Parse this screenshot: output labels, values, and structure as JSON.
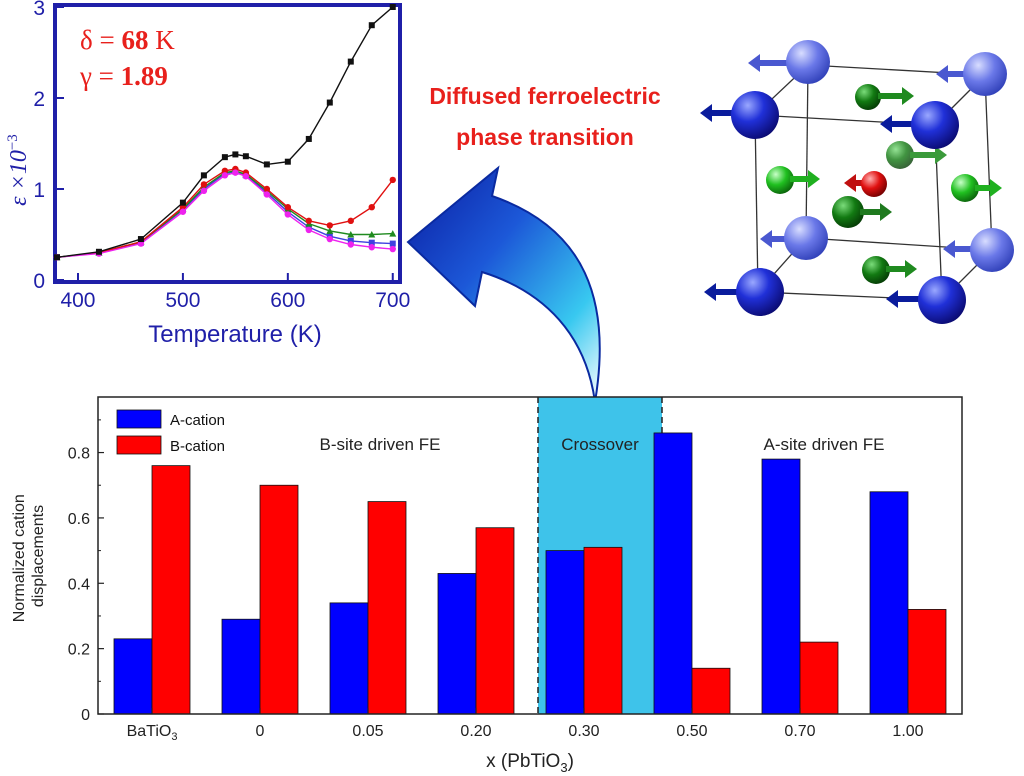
{
  "colors": {
    "a_cation": "#0000ff",
    "b_cation": "#ff0000",
    "crossover_band": "#3ec3ea",
    "inset_frame": "#1f1fa8",
    "annotation": "#e8201c",
    "arrow_blue": "#1b3fd0",
    "series_black": "#111111",
    "series_red": "#e01010",
    "series_green": "#1f8a1f",
    "series_magenta": "#ee22ee",
    "series_blue": "#4040e0"
  },
  "annotation": {
    "line1": "Diffused ferroelectric",
    "line2": "phase transition"
  },
  "inset": {
    "delta_sym": "δ = ",
    "delta_val": "68",
    "delta_unit": " K",
    "gamma_sym": "γ = ",
    "gamma_val": "1.89",
    "ylabel_main": "ε ×10",
    "ylabel_exp": "−3"
  },
  "main": {
    "ylabel_line1": "Normalized cation",
    "ylabel_line2": "displacements",
    "xlabel_main": "x (PbTiO",
    "xlabel_sub": "3",
    "xlabel_end": ")",
    "region_b": "B-site driven FE",
    "region_cross": "Crossover",
    "region_a": "A-site driven FE",
    "tick_first_main": "BaTiO",
    "tick_first_sub": "3"
  },
  "crystal": {
    "name": "Perovskite unit cell with cation displacement arrows"
  },
  "chart_data": [
    {
      "type": "bar",
      "title": "",
      "xlabel": "x (PbTiO3)",
      "ylabel": "Normalized cation displacements",
      "categories": [
        "BaTiO3",
        "0",
        "0.05",
        "0.20",
        "0.30",
        "0.50",
        "0.70",
        "1.00"
      ],
      "series": [
        {
          "name": "A-cation",
          "values": [
            0.23,
            0.29,
            0.34,
            0.43,
            0.5,
            0.86,
            0.78,
            0.68
          ]
        },
        {
          "name": "B-cation",
          "values": [
            0.76,
            0.7,
            0.65,
            0.57,
            0.51,
            0.14,
            0.22,
            0.32
          ]
        }
      ],
      "ylim": [
        0,
        0.97
      ],
      "yticks": [
        0,
        0.2,
        0.4,
        0.6,
        0.8
      ],
      "ytick_labels": [
        "0",
        "0.2",
        "0.4",
        "0.6",
        "0.8"
      ],
      "legend_position": "top-left",
      "regions": [
        {
          "label": "B-site driven FE",
          "from_category": "BaTiO3",
          "to_category": "0.20"
        },
        {
          "label": "Crossover",
          "category": "0.30",
          "highlight": true
        },
        {
          "label": "A-site driven FE",
          "from_category": "0.50",
          "to_category": "1.00"
        }
      ]
    },
    {
      "type": "line",
      "title": "",
      "xlabel": "Temperature (K)",
      "ylabel": "ε ×10^-3",
      "xlim": [
        380,
        705
      ],
      "ylim": [
        0,
        3
      ],
      "xticks": [
        400,
        500,
        600,
        700
      ],
      "yticks": [
        0,
        1,
        2,
        3
      ],
      "grid": false,
      "series": [
        {
          "name": "black",
          "x": [
            380,
            420,
            460,
            500,
            520,
            540,
            550,
            560,
            580,
            600,
            620,
            640,
            660,
            680,
            700
          ],
          "y": [
            0.25,
            0.31,
            0.45,
            0.85,
            1.15,
            1.35,
            1.38,
            1.36,
            1.27,
            1.3,
            1.55,
            1.95,
            2.4,
            2.8,
            3.0
          ]
        },
        {
          "name": "red",
          "x": [
            380,
            420,
            460,
            500,
            520,
            540,
            550,
            560,
            580,
            600,
            620,
            640,
            660,
            680,
            700
          ],
          "y": [
            0.25,
            0.3,
            0.42,
            0.8,
            1.05,
            1.2,
            1.22,
            1.18,
            1.0,
            0.8,
            0.65,
            0.6,
            0.65,
            0.8,
            1.1
          ]
        },
        {
          "name": "green",
          "x": [
            380,
            420,
            460,
            500,
            520,
            540,
            550,
            560,
            580,
            600,
            620,
            640,
            660,
            680,
            700
          ],
          "y": [
            0.25,
            0.3,
            0.42,
            0.78,
            1.02,
            1.18,
            1.2,
            1.16,
            0.98,
            0.78,
            0.62,
            0.54,
            0.5,
            0.5,
            0.51
          ]
        },
        {
          "name": "blue",
          "x": [
            380,
            420,
            460,
            500,
            520,
            540,
            550,
            560,
            580,
            600,
            620,
            640,
            660,
            680,
            700
          ],
          "y": [
            0.25,
            0.3,
            0.41,
            0.77,
            1.0,
            1.17,
            1.19,
            1.15,
            0.96,
            0.75,
            0.58,
            0.48,
            0.43,
            0.41,
            0.4
          ]
        },
        {
          "name": "magenta",
          "x": [
            380,
            420,
            460,
            500,
            520,
            540,
            550,
            560,
            580,
            600,
            620,
            640,
            660,
            680,
            700
          ],
          "y": [
            0.25,
            0.29,
            0.4,
            0.75,
            0.98,
            1.15,
            1.18,
            1.14,
            0.94,
            0.72,
            0.55,
            0.45,
            0.39,
            0.36,
            0.34
          ]
        }
      ]
    }
  ]
}
